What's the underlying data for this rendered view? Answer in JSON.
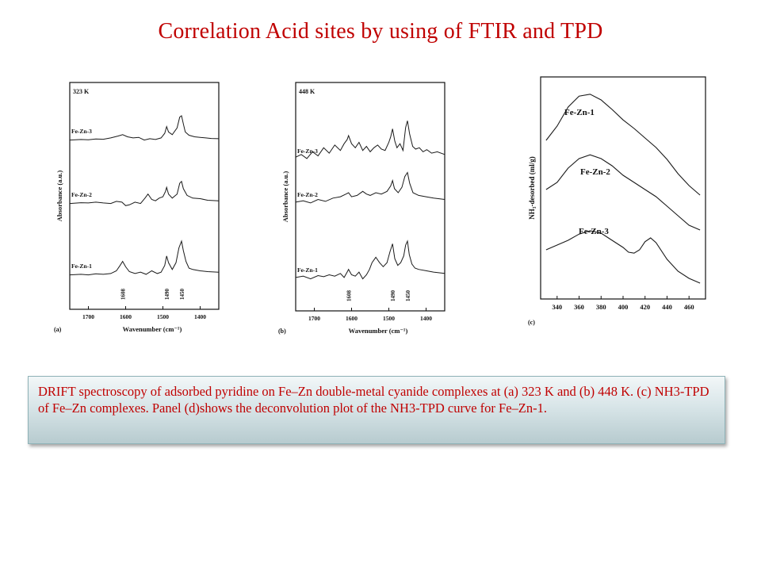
{
  "title": "Correlation Acid sites by using of FTIR and TPD",
  "caption": "DRIFT spectroscopy of adsorbed pyridine on Fe–Zn double-metal cyanide complexes at (a) 323 K and (b) 448 K. (c) NH3-TPD of Fe–Zn complexes. Panel (d)shows the deconvolution plot of the NH3-TPD curve for Fe–Zn-1.",
  "colors": {
    "title": "#c00000",
    "caption_text": "#c00000",
    "curve": "#1a1a1a"
  },
  "chart_data": [
    {
      "type": "line",
      "panel_label": "(a)",
      "temperature_label": "323 K",
      "xlabel": "Wavenumber (cm⁻¹)",
      "ylabel": "Absorbance (a.u.)",
      "xlim": [
        1750,
        1350
      ],
      "x_reversed": true,
      "x_ticks": [
        "1700",
        "1600",
        "1500",
        "1400"
      ],
      "peak_labels": [
        "1608",
        "1490",
        "1450"
      ],
      "peak_positions": [
        1608,
        1490,
        1450
      ],
      "series": [
        {
          "name": "Fe-Zn-3",
          "x": [
            1750,
            1720,
            1700,
            1680,
            1660,
            1640,
            1620,
            1608,
            1595,
            1580,
            1565,
            1550,
            1535,
            1520,
            1505,
            1495,
            1490,
            1485,
            1475,
            1462,
            1455,
            1450,
            1445,
            1440,
            1430,
            1415,
            1400,
            1385,
            1370,
            1350
          ],
          "values": [
            0.1,
            0.12,
            0.11,
            0.14,
            0.13,
            0.18,
            0.25,
            0.3,
            0.22,
            0.18,
            0.2,
            0.1,
            0.15,
            0.12,
            0.18,
            0.35,
            0.6,
            0.4,
            0.3,
            0.55,
            0.95,
            1.0,
            0.7,
            0.4,
            0.28,
            0.22,
            0.2,
            0.18,
            0.16,
            0.15
          ]
        },
        {
          "name": "Fe-Zn-2",
          "x": [
            1750,
            1720,
            1700,
            1680,
            1660,
            1640,
            1625,
            1610,
            1600,
            1590,
            1575,
            1560,
            1548,
            1540,
            1530,
            1520,
            1510,
            1500,
            1493,
            1490,
            1485,
            1475,
            1462,
            1455,
            1450,
            1445,
            1435,
            1420,
            1400,
            1380,
            1350
          ],
          "values": [
            0.1,
            0.13,
            0.12,
            0.15,
            0.12,
            0.1,
            0.18,
            0.15,
            0.02,
            0.05,
            0.15,
            0.1,
            0.3,
            0.45,
            0.25,
            0.2,
            0.3,
            0.35,
            0.55,
            0.7,
            0.45,
            0.3,
            0.45,
            0.85,
            0.92,
            0.65,
            0.4,
            0.3,
            0.28,
            0.22,
            0.2
          ]
        },
        {
          "name": "Fe-Zn-1",
          "x": [
            1750,
            1720,
            1700,
            1680,
            1660,
            1640,
            1625,
            1615,
            1608,
            1600,
            1590,
            1575,
            1560,
            1545,
            1530,
            1515,
            1505,
            1495,
            1490,
            1485,
            1475,
            1465,
            1457,
            1450,
            1445,
            1438,
            1430,
            1420,
            1400,
            1380,
            1350
          ],
          "values": [
            0.1,
            0.12,
            0.1,
            0.14,
            0.12,
            0.15,
            0.25,
            0.45,
            0.6,
            0.4,
            0.22,
            0.15,
            0.2,
            0.12,
            0.25,
            0.15,
            0.2,
            0.45,
            0.8,
            0.55,
            0.3,
            0.55,
            1.1,
            1.35,
            1.0,
            0.6,
            0.35,
            0.3,
            0.25,
            0.22,
            0.2
          ]
        }
      ]
    },
    {
      "type": "line",
      "panel_label": "(b)",
      "temperature_label": "448 K",
      "xlabel": "Wavenumber (cm⁻¹)",
      "ylabel": "Absorbance (a.u.)",
      "xlim": [
        1750,
        1350
      ],
      "x_reversed": true,
      "x_ticks": [
        "1700",
        "1600",
        "1500",
        "1400"
      ],
      "peak_labels": [
        "1608",
        "1490",
        "1450"
      ],
      "peak_positions": [
        1608,
        1490,
        1450
      ],
      "series": [
        {
          "name": "Fe-Zn-3",
          "x": [
            1750,
            1735,
            1720,
            1705,
            1690,
            1675,
            1660,
            1645,
            1630,
            1620,
            1612,
            1608,
            1600,
            1590,
            1580,
            1570,
            1560,
            1550,
            1540,
            1530,
            1520,
            1510,
            1500,
            1495,
            1490,
            1484,
            1478,
            1470,
            1462,
            1455,
            1450,
            1444,
            1436,
            1428,
            1418,
            1408,
            1398,
            1385,
            1370,
            1350
          ],
          "values": [
            0.2,
            0.3,
            0.15,
            0.4,
            0.25,
            0.55,
            0.35,
            0.65,
            0.45,
            0.7,
            0.85,
            1.0,
            0.7,
            0.55,
            0.75,
            0.45,
            0.6,
            0.4,
            0.55,
            0.65,
            0.5,
            0.45,
            0.75,
            0.95,
            1.25,
            0.8,
            0.55,
            0.7,
            0.45,
            1.3,
            1.55,
            1.05,
            0.6,
            0.5,
            0.55,
            0.4,
            0.48,
            0.35,
            0.4,
            0.3
          ]
        },
        {
          "name": "Fe-Zn-2",
          "x": [
            1750,
            1730,
            1710,
            1690,
            1670,
            1650,
            1630,
            1615,
            1608,
            1600,
            1585,
            1570,
            1560,
            1550,
            1535,
            1520,
            1505,
            1495,
            1490,
            1485,
            1475,
            1465,
            1457,
            1450,
            1444,
            1435,
            1420,
            1400,
            1380,
            1350
          ],
          "values": [
            0.15,
            0.2,
            0.12,
            0.25,
            0.18,
            0.3,
            0.35,
            0.45,
            0.5,
            0.35,
            0.4,
            0.55,
            0.45,
            0.4,
            0.5,
            0.45,
            0.55,
            0.75,
            0.95,
            0.65,
            0.5,
            0.7,
            1.1,
            1.25,
            0.85,
            0.5,
            0.4,
            0.35,
            0.3,
            0.25
          ]
        },
        {
          "name": "Fe-Zn-1",
          "x": [
            1750,
            1730,
            1710,
            1690,
            1675,
            1660,
            1645,
            1630,
            1620,
            1612,
            1608,
            1600,
            1590,
            1580,
            1570,
            1560,
            1552,
            1545,
            1535,
            1525,
            1515,
            1505,
            1497,
            1490,
            1484,
            1476,
            1468,
            1460,
            1455,
            1450,
            1445,
            1438,
            1430,
            1420,
            1400,
            1380,
            1350
          ],
          "values": [
            0.15,
            0.2,
            0.1,
            0.22,
            0.18,
            0.25,
            0.2,
            0.3,
            0.15,
            0.35,
            0.45,
            0.25,
            0.2,
            0.35,
            0.1,
            0.25,
            0.45,
            0.7,
            0.9,
            0.7,
            0.55,
            0.7,
            1.1,
            1.4,
            0.85,
            0.6,
            0.7,
            0.95,
            1.35,
            1.5,
            1.0,
            0.65,
            0.5,
            0.45,
            0.4,
            0.35,
            0.3
          ]
        }
      ]
    },
    {
      "type": "line",
      "panel_label": "(c)",
      "ylabel": "NH₃-desorbed (ml/g)",
      "xlim": [
        325,
        475
      ],
      "x_ticks": [
        "340",
        "360",
        "380",
        "400",
        "420",
        "440",
        "460"
      ],
      "series": [
        {
          "name": "Fe-Zn-1",
          "x": [
            330,
            340,
            350,
            360,
            370,
            380,
            390,
            400,
            410,
            420,
            430,
            440,
            450,
            460,
            470
          ],
          "values": [
            2.05,
            2.35,
            2.75,
            2.98,
            3.02,
            2.9,
            2.7,
            2.48,
            2.3,
            2.1,
            1.9,
            1.65,
            1.35,
            1.1,
            0.9
          ]
        },
        {
          "name": "Fe-Zn-2",
          "x": [
            330,
            340,
            350,
            360,
            370,
            380,
            390,
            400,
            410,
            420,
            430,
            440,
            450,
            460,
            470
          ],
          "values": [
            1.35,
            1.5,
            1.8,
            2.0,
            2.08,
            2.0,
            1.85,
            1.65,
            1.5,
            1.35,
            1.2,
            1.0,
            0.8,
            0.6,
            0.5
          ]
        },
        {
          "name": "Fe-Zn-3",
          "x": [
            330,
            340,
            350,
            360,
            370,
            380,
            390,
            400,
            405,
            410,
            415,
            420,
            425,
            430,
            440,
            450,
            460,
            470
          ],
          "values": [
            0.75,
            0.85,
            0.95,
            1.08,
            1.15,
            1.1,
            0.95,
            0.8,
            0.7,
            0.68,
            0.75,
            0.92,
            1.0,
            0.9,
            0.55,
            0.3,
            0.15,
            0.05
          ]
        }
      ]
    }
  ]
}
